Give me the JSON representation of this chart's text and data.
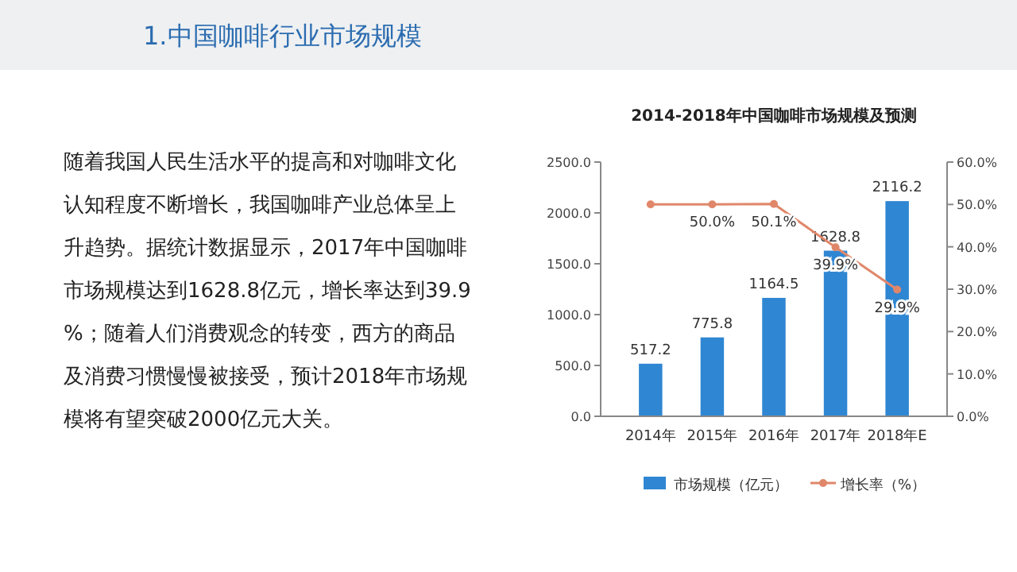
{
  "chart_data": {
    "type": "bar",
    "title": "2014-2018年中国咖啡市场规模及预测",
    "annotations": [
      "1.中国咖啡行业市场规模",
      "随着我国人民生活水平的提高和对咖啡文化认知程度不断增长，我国咖啡产业总体呈上升趋势。据统计数据显示，2017年中国咖啡市场规模达到1628.8亿元，增长率达到39.9%；随着人们消费观念的转变，西方的商品及消费习惯慢慢被接受，预计2018年市场规模将有望突破2000亿元大关。"
    ],
    "categories": [
      "2014年",
      "2015年",
      "2016年",
      "2017年",
      "2018年E"
    ],
    "series": [
      {
        "name": "市场规模（亿元）",
        "color": "#2f86d2",
        "values": [
          517.2,
          775.8,
          1164.5,
          1628.8,
          2116.2
        ],
        "value_labels": [
          "517.2",
          "775.8",
          "1164.5",
          "1628.8",
          "2116.2"
        ]
      },
      {
        "name": "增长率（%）",
        "type": "line",
        "axis": "y2",
        "color": "#e0876a",
        "values": [
          50.0,
          50.0,
          50.1,
          39.9,
          29.9
        ],
        "value_labels": [
          null,
          "50.0%",
          "50.1%",
          "39.9%",
          "29.9%"
        ]
      }
    ],
    "ylim": [
      0,
      2500
    ],
    "yticks": [
      {
        "value": 0,
        "label": "0.0"
      },
      {
        "value": 500,
        "label": "500.0"
      },
      {
        "value": 1000,
        "label": "1000.0"
      },
      {
        "value": 1500,
        "label": "1500.0"
      },
      {
        "value": 2000,
        "label": "2000.0"
      },
      {
        "value": 2500,
        "label": "2500.0"
      }
    ],
    "y2lim": [
      0,
      60
    ],
    "y2ticks": [
      {
        "value": 0,
        "label": "0.0%"
      },
      {
        "value": 10,
        "label": "10.0%"
      },
      {
        "value": 20,
        "label": "20.0%"
      },
      {
        "value": 30,
        "label": "30.0%"
      },
      {
        "value": 40,
        "label": "40.0%"
      },
      {
        "value": 50,
        "label": "50.0%"
      },
      {
        "value": 60,
        "label": "60.0%"
      }
    ],
    "legend": "bottom",
    "marker": "circle"
  }
}
